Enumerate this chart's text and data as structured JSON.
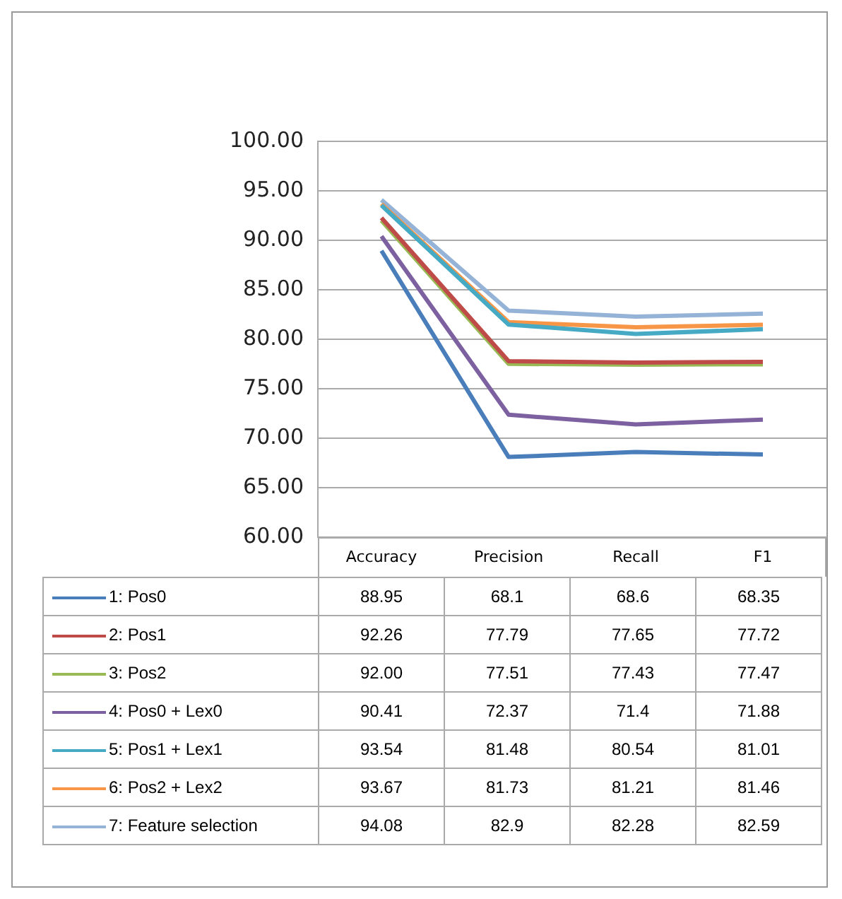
{
  "chart_data": {
    "type": "line",
    "categories": [
      "Accuracy",
      "Precision",
      "Recall",
      "F1"
    ],
    "ylim": [
      60,
      100
    ],
    "yticks": [
      {
        "value": 60,
        "label": "60.00"
      },
      {
        "value": 65,
        "label": "65.00"
      },
      {
        "value": 70,
        "label": "70.00"
      },
      {
        "value": 75,
        "label": "75.00"
      },
      {
        "value": 80,
        "label": "80.00"
      },
      {
        "value": 85,
        "label": "85.00"
      },
      {
        "value": 90,
        "label": "90.00"
      },
      {
        "value": 95,
        "label": "95.00"
      },
      {
        "value": 100,
        "label": "100.00"
      }
    ],
    "grid": "y",
    "legend": "bottom",
    "marker": "none",
    "line_style": "solid",
    "series": [
      {
        "name": "1: Pos0",
        "color": "#4a7ebb",
        "values": [
          88.95,
          68.1,
          68.6,
          68.35
        ],
        "value_labels": [
          "88.95",
          "68.1",
          "68.6",
          "68.35"
        ]
      },
      {
        "name": "2: Pos1",
        "color": "#be4b48",
        "values": [
          92.26,
          77.79,
          77.65,
          77.72
        ],
        "value_labels": [
          "92.26",
          "77.79",
          "77.65",
          "77.72"
        ]
      },
      {
        "name": "3: Pos2",
        "color": "#98b954",
        "values": [
          92.0,
          77.51,
          77.43,
          77.47
        ],
        "value_labels": [
          "92.00",
          "77.51",
          "77.43",
          "77.47"
        ]
      },
      {
        "name": "4: Pos0 + Lex0",
        "color": "#7d60a0",
        "values": [
          90.41,
          72.37,
          71.4,
          71.88
        ],
        "value_labels": [
          "90.41",
          "72.37",
          "71.4",
          "71.88"
        ]
      },
      {
        "name": "5: Pos1 + Lex1",
        "color": "#46aac5",
        "values": [
          93.54,
          81.48,
          80.54,
          81.01
        ],
        "value_labels": [
          "93.54",
          "81.48",
          "80.54",
          "81.01"
        ]
      },
      {
        "name": "6: Pos2 + Lex2",
        "color": "#f79646",
        "values": [
          93.67,
          81.73,
          81.21,
          81.46
        ],
        "value_labels": [
          "93.67",
          "81.73",
          "81.21",
          "81.46"
        ]
      },
      {
        "name": "7: Feature selection",
        "color": "#95b3d7",
        "values": [
          94.08,
          82.9,
          82.28,
          82.59
        ],
        "value_labels": [
          "94.08",
          "82.9",
          "82.28",
          "82.59"
        ]
      }
    ]
  }
}
